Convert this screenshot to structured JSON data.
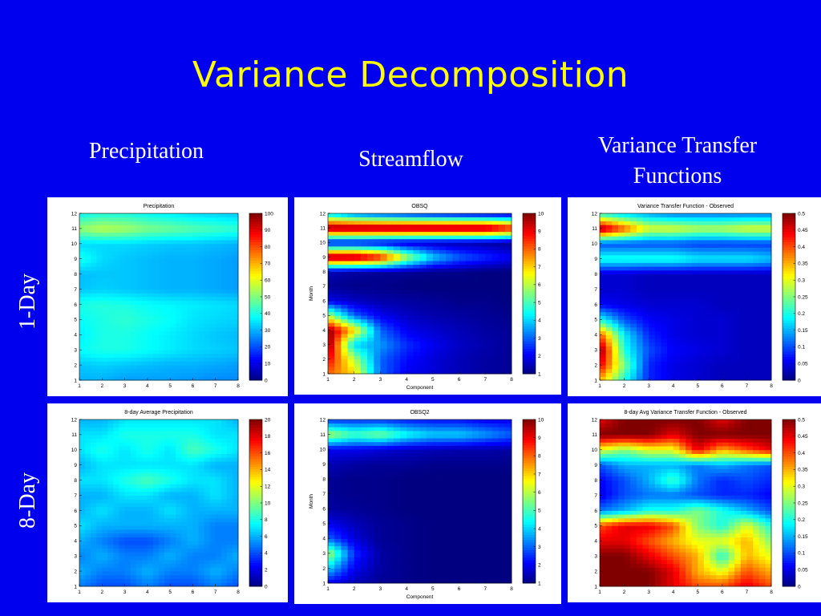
{
  "slide": {
    "title": "Variance Decomposition",
    "col_heads": [
      "Precipitation",
      "Streamflow",
      "Variance Transfer Functions"
    ],
    "row_labels": [
      "1-Day",
      "8-Day"
    ]
  },
  "colors": {
    "background": "#0000ee",
    "title": "#ffff00",
    "text": "#ffffff"
  },
  "chart_data": [
    {
      "type": "heatmap",
      "title": "Precipitation",
      "xlabel": "",
      "ylabel": "",
      "x": [
        1,
        2,
        3,
        4,
        5,
        6,
        7,
        8
      ],
      "y": [
        1,
        2,
        3,
        4,
        5,
        6,
        7,
        8,
        9,
        10,
        11,
        12
      ],
      "ylim": [
        1,
        12
      ],
      "colorbar": {
        "ticks": [
          0,
          10,
          20,
          30,
          40,
          50,
          60,
          70,
          80,
          90,
          100
        ],
        "range": [
          0,
          100
        ]
      },
      "values": [
        [
          30,
          30,
          28,
          28,
          28,
          27,
          26,
          26
        ],
        [
          32,
          33,
          32,
          31,
          30,
          30,
          29,
          28
        ],
        [
          38,
          40,
          40,
          38,
          36,
          34,
          33,
          32
        ],
        [
          36,
          40,
          40,
          38,
          36,
          34,
          32,
          31
        ],
        [
          38,
          40,
          42,
          40,
          38,
          35,
          34,
          33
        ],
        [
          40,
          41,
          40,
          38,
          37,
          36,
          35,
          34
        ],
        [
          32,
          33,
          32,
          31,
          30,
          30,
          29,
          28
        ],
        [
          31,
          32,
          32,
          31,
          30,
          30,
          29,
          28
        ],
        [
          40,
          34,
          32,
          31,
          30,
          30,
          29,
          28
        ],
        [
          34,
          34,
          34,
          33,
          32,
          32,
          31,
          30
        ],
        [
          52,
          56,
          54,
          50,
          48,
          46,
          44,
          42
        ],
        [
          38,
          40,
          40,
          38,
          36,
          34,
          33,
          32
        ]
      ]
    },
    {
      "type": "heatmap",
      "title": "OBSQ",
      "xlabel": "Component",
      "ylabel": "Month",
      "x": [
        1,
        2,
        3,
        4,
        5,
        6,
        7,
        8
      ],
      "y": [
        1,
        2,
        3,
        4,
        5,
        6,
        7,
        8,
        9,
        10,
        11,
        12
      ],
      "ylim": [
        1,
        12
      ],
      "colorbar": {
        "ticks": [
          1,
          2,
          3,
          4,
          5,
          6,
          7,
          8,
          9,
          10
        ],
        "range": [
          1,
          10
        ]
      },
      "values": [
        [
          8,
          7,
          3,
          2,
          1.8,
          1.5,
          1.3,
          1.2
        ],
        [
          9,
          6,
          3,
          2.2,
          1.8,
          1.5,
          1.3,
          1.2
        ],
        [
          10,
          4,
          3.5,
          2.5,
          2,
          1.6,
          1.4,
          1.2
        ],
        [
          10,
          7,
          3,
          2,
          1.7,
          1.5,
          1.3,
          1.2
        ],
        [
          6,
          3,
          2,
          1.6,
          1.4,
          1.3,
          1.2,
          1.1
        ],
        [
          2,
          1.6,
          1.4,
          1.3,
          1.2,
          1.1,
          1.1,
          1
        ],
        [
          1.2,
          1.1,
          1.1,
          1,
          1,
          1,
          1,
          1
        ],
        [
          1.5,
          1.3,
          1.2,
          1.2,
          1.1,
          1.1,
          1,
          1
        ],
        [
          10,
          10,
          9,
          6,
          4,
          3,
          2.5,
          2
        ],
        [
          2,
          2,
          1.8,
          1.6,
          1.5,
          1.4,
          1.3,
          1.2
        ],
        [
          10,
          10,
          10,
          10,
          10,
          10,
          10,
          9
        ],
        [
          4,
          3,
          2.6,
          2.3,
          2,
          1.8,
          1.6,
          1.5
        ]
      ]
    },
    {
      "type": "heatmap",
      "title": "Variance Transfer Function - Observed",
      "xlabel": "",
      "ylabel": "",
      "x": [
        1,
        2,
        3,
        4,
        5,
        6,
        7,
        8
      ],
      "y": [
        1,
        2,
        3,
        4,
        5,
        6,
        7,
        8,
        9,
        10,
        11,
        12
      ],
      "ylim": [
        1,
        12
      ],
      "colorbar": {
        "ticks": [
          0,
          0.05,
          0.1,
          0.15,
          0.2,
          0.25,
          0.3,
          0.35,
          0.4,
          0.45,
          0.5
        ],
        "range": [
          0,
          0.5
        ]
      },
      "values": [
        [
          0.35,
          0.2,
          0.08,
          0.05,
          0.04,
          0.03,
          0.03,
          0.03
        ],
        [
          0.45,
          0.25,
          0.08,
          0.05,
          0.04,
          0.03,
          0.03,
          0.03
        ],
        [
          0.5,
          0.2,
          0.1,
          0.06,
          0.05,
          0.04,
          0.03,
          0.03
        ],
        [
          0.4,
          0.18,
          0.08,
          0.05,
          0.04,
          0.04,
          0.03,
          0.03
        ],
        [
          0.2,
          0.1,
          0.06,
          0.05,
          0.04,
          0.04,
          0.03,
          0.03
        ],
        [
          0.06,
          0.05,
          0.04,
          0.04,
          0.04,
          0.03,
          0.03,
          0.03
        ],
        [
          0.04,
          0.04,
          0.03,
          0.03,
          0.03,
          0.03,
          0.03,
          0.03
        ],
        [
          0.04,
          0.04,
          0.03,
          0.03,
          0.03,
          0.03,
          0.03,
          0.03
        ],
        [
          0.2,
          0.2,
          0.2,
          0.2,
          0.18,
          0.18,
          0.18,
          0.16
        ],
        [
          0.1,
          0.1,
          0.1,
          0.1,
          0.09,
          0.09,
          0.09,
          0.09
        ],
        [
          0.5,
          0.4,
          0.3,
          0.3,
          0.28,
          0.28,
          0.3,
          0.3
        ],
        [
          0.2,
          0.16,
          0.14,
          0.12,
          0.12,
          0.12,
          0.12,
          0.12
        ]
      ]
    },
    {
      "type": "heatmap",
      "title": "8-day Average Precipitation",
      "xlabel": "",
      "ylabel": "",
      "x": [
        1,
        2,
        3,
        4,
        5,
        6,
        7,
        8
      ],
      "y": [
        1,
        2,
        3,
        4,
        5,
        6,
        7,
        8,
        9,
        10,
        11,
        12
      ],
      "ylim": [
        1,
        12
      ],
      "colorbar": {
        "ticks": [
          0,
          2,
          4,
          6,
          8,
          10,
          12,
          14,
          16,
          18,
          20
        ],
        "range": [
          0,
          20
        ]
      },
      "values": [
        [
          5,
          4,
          4,
          5,
          4,
          4,
          5,
          4
        ],
        [
          6,
          5,
          5,
          6,
          5,
          5,
          6,
          5
        ],
        [
          5,
          6,
          5,
          5,
          6,
          5,
          5,
          6
        ],
        [
          6,
          5,
          4,
          4,
          5,
          6,
          5,
          5
        ],
        [
          7,
          6,
          6,
          6,
          6,
          6,
          5,
          5
        ],
        [
          6,
          7,
          6,
          6,
          7,
          6,
          6,
          6
        ],
        [
          6,
          6,
          7,
          7,
          6,
          6,
          7,
          6
        ],
        [
          7,
          7,
          8,
          9,
          8,
          7,
          7,
          6
        ],
        [
          6,
          7,
          7,
          7,
          7,
          7,
          6,
          6
        ],
        [
          7,
          8,
          7,
          8,
          7,
          9,
          8,
          7
        ],
        [
          7,
          7,
          8,
          8,
          8,
          8,
          7,
          7
        ],
        [
          6,
          6,
          7,
          7,
          7,
          7,
          7,
          6
        ]
      ]
    },
    {
      "type": "heatmap",
      "title": "OBSQ2",
      "xlabel": "Component",
      "ylabel": "Month",
      "x": [
        1,
        2,
        3,
        4,
        5,
        6,
        7,
        8
      ],
      "y": [
        1,
        2,
        3,
        4,
        5,
        6,
        7,
        8,
        9,
        10,
        11,
        12
      ],
      "ylim": [
        1,
        12
      ],
      "colorbar": {
        "ticks": [
          1,
          2,
          3,
          4,
          5,
          6,
          7,
          8,
          9,
          10
        ],
        "range": [
          1,
          10
        ]
      },
      "values": [
        [
          2,
          1.5,
          1.2,
          1.1,
          1,
          1,
          1,
          1
        ],
        [
          4,
          2,
          1.3,
          1.1,
          1,
          1,
          1,
          1
        ],
        [
          6,
          2.5,
          1.3,
          1.1,
          1,
          1,
          1,
          1
        ],
        [
          3,
          1.8,
          1.2,
          1.1,
          1,
          1,
          1,
          1
        ],
        [
          2,
          1.5,
          1.2,
          1.1,
          1,
          1,
          1,
          1
        ],
        [
          1.3,
          1.2,
          1.1,
          1,
          1,
          1,
          1,
          1
        ],
        [
          1.2,
          1.1,
          1.1,
          1,
          1,
          1,
          1,
          1
        ],
        [
          1.2,
          1.1,
          1.1,
          1,
          1,
          1,
          1,
          1
        ],
        [
          1.5,
          1.3,
          1.2,
          1.2,
          1.1,
          1.1,
          1.1,
          1.1
        ],
        [
          2,
          2,
          1.8,
          1.6,
          1.5,
          1.4,
          1.4,
          1.3
        ],
        [
          6,
          5,
          5.5,
          4.5,
          4,
          4,
          3.5,
          3
        ],
        [
          2.5,
          2.5,
          2.5,
          2.3,
          2.2,
          2.2,
          2,
          2
        ]
      ]
    },
    {
      "type": "heatmap",
      "title": "8-day Avg Variance Transfer Function - Observed",
      "xlabel": "",
      "ylabel": "",
      "x": [
        1,
        2,
        3,
        4,
        5,
        6,
        7,
        8
      ],
      "y": [
        1,
        2,
        3,
        4,
        5,
        6,
        7,
        8,
        9,
        10,
        11,
        12
      ],
      "ylim": [
        1,
        12
      ],
      "colorbar": {
        "ticks": [
          0,
          0.05,
          0.1,
          0.15,
          0.2,
          0.25,
          0.3,
          0.35,
          0.4,
          0.45,
          0.5
        ],
        "range": [
          0,
          0.5
        ]
      },
      "values": [
        [
          0.5,
          0.5,
          0.5,
          0.45,
          0.4,
          0.4,
          0.45,
          0.4
        ],
        [
          0.5,
          0.5,
          0.5,
          0.45,
          0.35,
          0.3,
          0.4,
          0.35
        ],
        [
          0.5,
          0.5,
          0.45,
          0.4,
          0.35,
          0.2,
          0.35,
          0.3
        ],
        [
          0.45,
          0.45,
          0.4,
          0.35,
          0.3,
          0.3,
          0.35,
          0.25
        ],
        [
          0.4,
          0.45,
          0.45,
          0.4,
          0.25,
          0.2,
          0.3,
          0.2
        ],
        [
          0.12,
          0.15,
          0.2,
          0.2,
          0.25,
          0.2,
          0.15,
          0.1
        ],
        [
          0.05,
          0.1,
          0.12,
          0.12,
          0.1,
          0.08,
          0.08,
          0.06
        ],
        [
          0.06,
          0.1,
          0.15,
          0.22,
          0.12,
          0.08,
          0.1,
          0.08
        ],
        [
          0.1,
          0.15,
          0.15,
          0.15,
          0.12,
          0.15,
          0.12,
          0.1
        ],
        [
          0.3,
          0.25,
          0.3,
          0.3,
          0.45,
          0.35,
          0.4,
          0.45
        ],
        [
          0.5,
          0.5,
          0.5,
          0.45,
          0.5,
          0.5,
          0.5,
          0.5
        ],
        [
          0.45,
          0.5,
          0.5,
          0.5,
          0.5,
          0.45,
          0.5,
          0.5
        ]
      ]
    }
  ]
}
